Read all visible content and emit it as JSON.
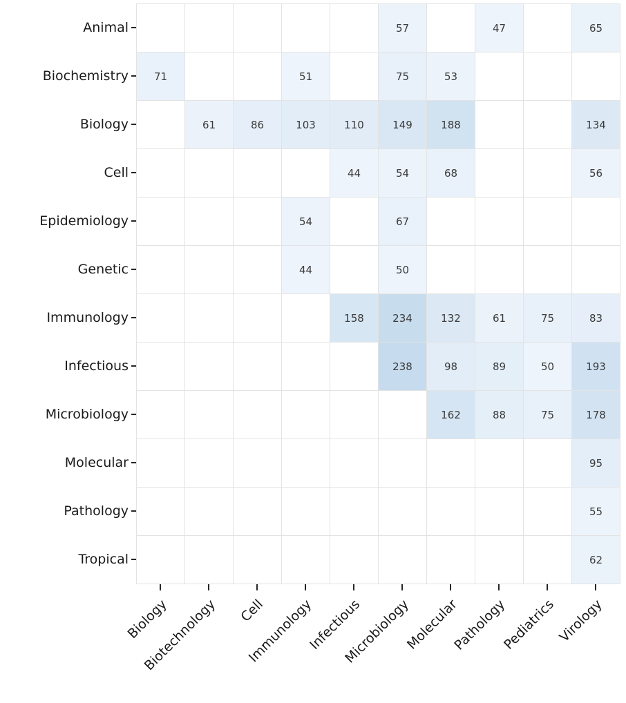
{
  "chart_data": {
    "type": "heatmap",
    "title": "",
    "xlabel": "",
    "ylabel": "",
    "legend": "none",
    "grid": "on",
    "rows": [
      "Animal",
      "Biochemistry",
      "Biology",
      "Cell",
      "Epidemiology",
      "Genetic",
      "Immunology",
      "Infectious",
      "Microbiology",
      "Molecular",
      "Pathology",
      "Tropical"
    ],
    "columns": [
      "Biology",
      "Biotechnology",
      "Cell",
      "Immunology",
      "Infectious",
      "Microbiology",
      "Molecular",
      "Pathology",
      "Pediatrics",
      "Virology"
    ],
    "matrix": [
      [
        null,
        null,
        null,
        null,
        null,
        57,
        null,
        47,
        null,
        65
      ],
      [
        71,
        null,
        null,
        51,
        null,
        75,
        53,
        null,
        null,
        null
      ],
      [
        null,
        61,
        86,
        103,
        110,
        149,
        188,
        null,
        null,
        134
      ],
      [
        null,
        null,
        null,
        null,
        44,
        54,
        68,
        null,
        null,
        56
      ],
      [
        null,
        null,
        null,
        54,
        null,
        67,
        null,
        null,
        null,
        null
      ],
      [
        null,
        null,
        null,
        44,
        null,
        50,
        null,
        null,
        null,
        null
      ],
      [
        null,
        null,
        null,
        null,
        158,
        234,
        132,
        61,
        75,
        83
      ],
      [
        null,
        null,
        null,
        null,
        null,
        238,
        98,
        89,
        50,
        193
      ],
      [
        null,
        null,
        null,
        null,
        null,
        null,
        162,
        88,
        75,
        178
      ],
      [
        null,
        null,
        null,
        null,
        null,
        null,
        null,
        null,
        null,
        95
      ],
      [
        null,
        null,
        null,
        null,
        null,
        null,
        null,
        null,
        null,
        55
      ],
      [
        null,
        null,
        null,
        null,
        null,
        null,
        null,
        null,
        null,
        62
      ]
    ],
    "colormap": {
      "name": "Blues-light",
      "empty_color": "#ffffff",
      "low_value": 40,
      "high_value": 240,
      "low_color_rgb": [
        239,
        245,
        252
      ],
      "high_color_rgb": [
        198,
        219,
        237
      ]
    },
    "style": {
      "grid_line_color": "#e3e3e3",
      "cell_text_color": "#3a3a3a",
      "axis_label_color": "#1a1a1a",
      "tick_color": "#262626"
    }
  }
}
